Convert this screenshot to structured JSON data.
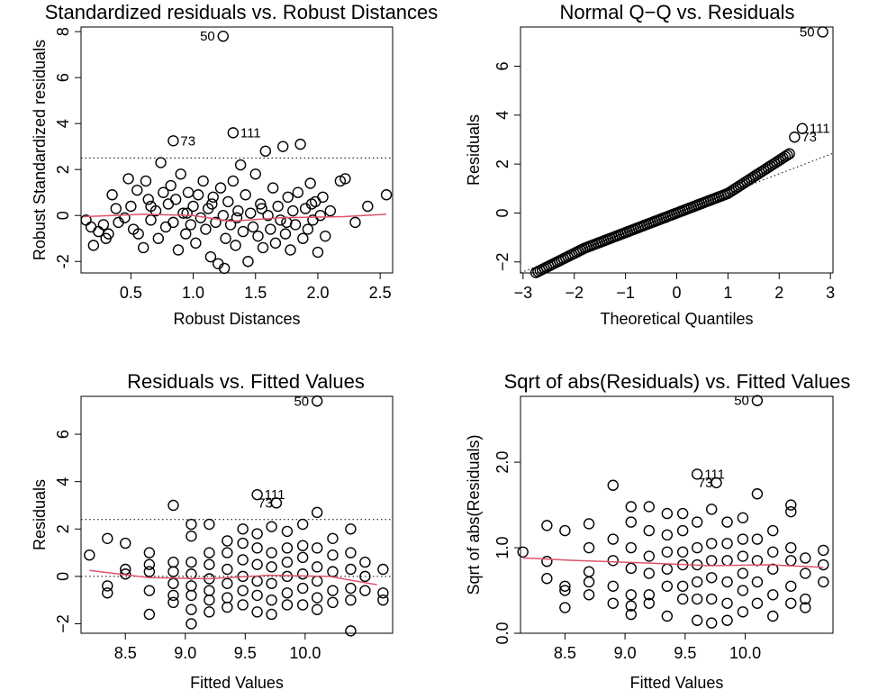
{
  "colors": {
    "points": "#000000",
    "smooth": "#DF536B",
    "reference": "#000000"
  },
  "chart_data": [
    {
      "type": "scatter",
      "title": "Standardized residuals vs. Robust Distances",
      "xlabel": "Robust Distances",
      "ylabel": "Robust Standardized residuals",
      "xlim": [
        0.1,
        2.6
      ],
      "ylim": [
        -2.5,
        8.2
      ],
      "xticks": [
        "0.5",
        "1.0",
        "1.5",
        "2.0",
        "2.5"
      ],
      "yticks": [
        "-2",
        "0",
        "2",
        "4",
        "6",
        "8"
      ],
      "hlines": [
        2.5,
        -2.5
      ],
      "smooth": [
        [
          0.12,
          -0.05
        ],
        [
          0.6,
          0.05
        ],
        [
          1.0,
          0.0
        ],
        [
          1.3,
          -0.25
        ],
        [
          1.7,
          -0.1
        ],
        [
          2.2,
          -0.05
        ],
        [
          2.55,
          0.05
        ]
      ],
      "labeled_points": [
        {
          "label": "50",
          "x": 1.24,
          "y": 7.8
        },
        {
          "label": "73",
          "x": 0.84,
          "y": 3.25
        },
        {
          "label": "111",
          "x": 1.32,
          "y": 3.6
        }
      ],
      "points": [
        [
          0.14,
          -0.2
        ],
        [
          0.18,
          -0.5
        ],
        [
          0.2,
          -1.3
        ],
        [
          0.24,
          -0.7
        ],
        [
          0.28,
          -0.4
        ],
        [
          0.3,
          -1.0
        ],
        [
          0.32,
          -0.8
        ],
        [
          0.35,
          0.9
        ],
        [
          0.38,
          0.3
        ],
        [
          0.4,
          -0.3
        ],
        [
          0.45,
          -0.1
        ],
        [
          0.48,
          1.6
        ],
        [
          0.5,
          0.4
        ],
        [
          0.52,
          -0.6
        ],
        [
          0.55,
          1.1
        ],
        [
          0.56,
          -0.8
        ],
        [
          0.6,
          -1.4
        ],
        [
          0.62,
          1.5
        ],
        [
          0.64,
          0.7
        ],
        [
          0.66,
          -0.2
        ],
        [
          0.7,
          0.2
        ],
        [
          0.72,
          -1.0
        ],
        [
          0.74,
          2.3
        ],
        [
          0.76,
          1.0
        ],
        [
          0.78,
          -0.5
        ],
        [
          0.8,
          0.5
        ],
        [
          0.82,
          1.3
        ],
        [
          0.84,
          -0.3
        ],
        [
          0.86,
          0.7
        ],
        [
          0.88,
          -1.5
        ],
        [
          0.9,
          1.8
        ],
        [
          0.92,
          0.1
        ],
        [
          0.94,
          -0.8
        ],
        [
          0.96,
          1.0
        ],
        [
          0.98,
          -0.4
        ],
        [
          1.0,
          0.4
        ],
        [
          1.02,
          -1.2
        ],
        [
          1.04,
          0.9
        ],
        [
          1.06,
          -0.1
        ],
        [
          1.08,
          1.5
        ],
        [
          1.1,
          -0.6
        ],
        [
          1.12,
          0.3
        ],
        [
          1.14,
          -1.8
        ],
        [
          1.16,
          0.8
        ],
        [
          1.18,
          -0.3
        ],
        [
          1.2,
          -2.1
        ],
        [
          1.22,
          1.2
        ],
        [
          1.24,
          0.0
        ],
        [
          1.26,
          -1.0
        ],
        [
          1.28,
          0.6
        ],
        [
          1.3,
          -0.4
        ],
        [
          1.32,
          1.5
        ],
        [
          1.34,
          -1.3
        ],
        [
          1.36,
          0.2
        ],
        [
          1.38,
          2.2
        ],
        [
          1.4,
          -0.7
        ],
        [
          1.42,
          0.9
        ],
        [
          1.44,
          -2.0
        ],
        [
          1.46,
          0.1
        ],
        [
          1.48,
          -0.5
        ],
        [
          1.5,
          1.8
        ],
        [
          1.52,
          -0.9
        ],
        [
          1.54,
          0.5
        ],
        [
          1.56,
          -1.4
        ],
        [
          1.58,
          2.8
        ],
        [
          1.6,
          0.0
        ],
        [
          1.62,
          -0.6
        ],
        [
          1.64,
          1.2
        ],
        [
          1.66,
          -1.2
        ],
        [
          1.68,
          0.4
        ],
        [
          1.7,
          -0.2
        ],
        [
          1.72,
          3.0
        ],
        [
          1.74,
          -0.8
        ],
        [
          1.76,
          0.8
        ],
        [
          1.78,
          -1.5
        ],
        [
          1.8,
          0.2
        ],
        [
          1.82,
          -0.4
        ],
        [
          1.84,
          1.0
        ],
        [
          1.86,
          3.1
        ],
        [
          1.88,
          -1.0
        ],
        [
          1.9,
          0.3
        ],
        [
          1.92,
          -0.6
        ],
        [
          1.94,
          1.4
        ],
        [
          1.96,
          -0.2
        ],
        [
          1.98,
          0.6
        ],
        [
          2.0,
          -1.6
        ],
        [
          2.02,
          0.0
        ],
        [
          2.04,
          0.8
        ],
        [
          2.06,
          -0.9
        ],
        [
          2.1,
          0.2
        ],
        [
          2.18,
          1.5
        ],
        [
          2.22,
          1.6
        ],
        [
          2.3,
          -0.3
        ],
        [
          2.4,
          0.4
        ],
        [
          2.55,
          0.9
        ],
        [
          1.25,
          -2.3
        ],
        [
          0.66,
          0.4
        ],
        [
          0.95,
          0.1
        ],
        [
          1.15,
          0.5
        ],
        [
          1.35,
          -0.1
        ],
        [
          1.55,
          0.3
        ],
        [
          1.75,
          -0.3
        ],
        [
          1.95,
          0.5
        ]
      ]
    },
    {
      "type": "scatter",
      "title": "Normal Q−Q vs. Residuals",
      "xlabel": "Theoretical Quantiles",
      "ylabel": "Residuals",
      "xlim": [
        -3.05,
        3.05
      ],
      "ylim": [
        -2.45,
        7.6
      ],
      "xticks": [
        "−3",
        "−2",
        "−1",
        "0",
        "1",
        "2",
        "3"
      ],
      "yticks": [
        "−2",
        "0",
        "2",
        "4",
        "6"
      ],
      "reference_line": {
        "intercept": 0.0,
        "slope": 0.8
      },
      "labeled_points": [
        {
          "label": "50",
          "x": 2.85,
          "y": 7.4
        },
        {
          "label": "111",
          "x": 2.45,
          "y": 3.45
        },
        {
          "label": "73",
          "x": 2.3,
          "y": 3.1
        }
      ],
      "qq_range": [
        -2.75,
        2.2
      ],
      "qq_count": 120
    },
    {
      "type": "scatter",
      "title": "Residuals vs. Fitted Values",
      "xlabel": "Fitted Values",
      "ylabel": "Residuals",
      "xlim": [
        8.13,
        10.73
      ],
      "ylim": [
        -2.4,
        7.6
      ],
      "xticks": [
        "8.5",
        "9.0",
        "9.5",
        "10.0"
      ],
      "yticks": [
        "−2",
        "0",
        "2",
        "4",
        "6"
      ],
      "hlines": [
        2.4,
        -2.4
      ],
      "smooth": [
        [
          8.2,
          0.25
        ],
        [
          8.7,
          -0.05
        ],
        [
          9.2,
          -0.1
        ],
        [
          9.7,
          0.05
        ],
        [
          10.2,
          0.0
        ],
        [
          10.6,
          -0.35
        ]
      ],
      "labeled_points": [
        {
          "label": "50",
          "x": 10.1,
          "y": 7.4
        },
        {
          "label": "111",
          "x": 9.6,
          "y": 3.45
        },
        {
          "label": "73",
          "x": 9.76,
          "y": 3.1
        }
      ],
      "columns": [
        8.2,
        8.35,
        8.5,
        8.7,
        8.9,
        9.05,
        9.2,
        9.35,
        9.48,
        9.6,
        9.72,
        9.85,
        9.98,
        10.1,
        10.23,
        10.38,
        10.5,
        10.65
      ],
      "points": [
        [
          8.2,
          0.9
        ],
        [
          8.35,
          -0.4
        ],
        [
          8.35,
          -0.7
        ],
        [
          8.35,
          1.6
        ],
        [
          8.5,
          0.1
        ],
        [
          8.5,
          0.3
        ],
        [
          8.5,
          1.4
        ],
        [
          8.7,
          0.2
        ],
        [
          8.7,
          0.5
        ],
        [
          8.7,
          -0.6
        ],
        [
          8.7,
          -1.6
        ],
        [
          8.7,
          1.0
        ],
        [
          8.9,
          3.0
        ],
        [
          8.9,
          0.2
        ],
        [
          8.9,
          -0.3
        ],
        [
          8.9,
          -0.8
        ],
        [
          8.9,
          -1.1
        ],
        [
          8.9,
          0.6
        ],
        [
          9.05,
          2.2
        ],
        [
          9.05,
          1.7
        ],
        [
          9.05,
          0.6
        ],
        [
          9.05,
          0.1
        ],
        [
          9.05,
          -0.4
        ],
        [
          9.05,
          -0.8
        ],
        [
          9.05,
          -1.4
        ],
        [
          9.05,
          -2.0
        ],
        [
          9.2,
          2.2
        ],
        [
          9.2,
          1.0
        ],
        [
          9.2,
          0.5
        ],
        [
          9.2,
          -0.1
        ],
        [
          9.2,
          -0.6
        ],
        [
          9.2,
          -1.0
        ],
        [
          9.2,
          -1.5
        ],
        [
          9.35,
          1.5
        ],
        [
          9.35,
          1.0
        ],
        [
          9.35,
          0.3
        ],
        [
          9.35,
          -0.3
        ],
        [
          9.35,
          -0.9
        ],
        [
          9.35,
          -1.3
        ],
        [
          9.48,
          2.0
        ],
        [
          9.48,
          1.4
        ],
        [
          9.48,
          0.7
        ],
        [
          9.48,
          0.0
        ],
        [
          9.48,
          -0.6
        ],
        [
          9.48,
          -1.2
        ],
        [
          9.6,
          1.8
        ],
        [
          9.6,
          1.2
        ],
        [
          9.6,
          0.5
        ],
        [
          9.6,
          -0.2
        ],
        [
          9.6,
          -0.8
        ],
        [
          9.6,
          -1.5
        ],
        [
          9.72,
          2.1
        ],
        [
          9.72,
          1.0
        ],
        [
          9.72,
          0.4
        ],
        [
          9.72,
          -0.3
        ],
        [
          9.72,
          -1.0
        ],
        [
          9.72,
          -1.6
        ],
        [
          9.85,
          1.9
        ],
        [
          9.85,
          1.2
        ],
        [
          9.85,
          0.6
        ],
        [
          9.85,
          0.0
        ],
        [
          9.85,
          -0.7
        ],
        [
          9.85,
          -1.2
        ],
        [
          9.98,
          2.2
        ],
        [
          9.98,
          1.3
        ],
        [
          9.98,
          0.8
        ],
        [
          9.98,
          0.1
        ],
        [
          9.98,
          -0.5
        ],
        [
          9.98,
          -1.2
        ],
        [
          10.1,
          2.7
        ],
        [
          10.1,
          1.2
        ],
        [
          10.1,
          0.4
        ],
        [
          10.1,
          -0.2
        ],
        [
          10.1,
          -0.9
        ],
        [
          10.1,
          -1.4
        ],
        [
          10.23,
          1.6
        ],
        [
          10.23,
          0.9
        ],
        [
          10.23,
          0.2
        ],
        [
          10.23,
          -0.6
        ],
        [
          10.23,
          -1.1
        ],
        [
          10.38,
          2.0
        ],
        [
          10.38,
          1.0
        ],
        [
          10.38,
          0.3
        ],
        [
          10.38,
          -0.5
        ],
        [
          10.38,
          -1.0
        ],
        [
          10.38,
          -2.3
        ],
        [
          10.5,
          0.6
        ],
        [
          10.5,
          0.0
        ],
        [
          10.5,
          -0.6
        ],
        [
          10.65,
          0.3
        ],
        [
          10.65,
          -0.7
        ],
        [
          10.65,
          -1.0
        ]
      ]
    },
    {
      "type": "scatter",
      "title": "Sqrt of abs(Residuals) vs. Fitted Values",
      "xlabel": "Fitted Values",
      "ylabel": "Sqrt of abs(Residuals)",
      "xlim": [
        8.13,
        10.73
      ],
      "ylim": [
        0.0,
        2.77
      ],
      "xticks": [
        "8.5",
        "9.0",
        "9.5",
        "10.0"
      ],
      "yticks": [
        "0.0",
        "1.0",
        "2.0"
      ],
      "smooth": [
        [
          8.15,
          0.88
        ],
        [
          8.6,
          0.85
        ],
        [
          9.2,
          0.82
        ],
        [
          9.7,
          0.79
        ],
        [
          10.2,
          0.8
        ],
        [
          10.65,
          0.77
        ]
      ],
      "labeled_points": [
        {
          "label": "50",
          "x": 10.1,
          "y": 2.72
        },
        {
          "label": "111",
          "x": 9.6,
          "y": 1.86
        },
        {
          "label": "73",
          "x": 9.76,
          "y": 1.76
        }
      ],
      "points": [
        [
          8.15,
          0.95
        ],
        [
          8.35,
          1.26
        ],
        [
          8.35,
          0.84
        ],
        [
          8.35,
          0.64
        ],
        [
          8.5,
          1.2
        ],
        [
          8.5,
          0.55
        ],
        [
          8.5,
          0.5
        ],
        [
          8.5,
          0.3
        ],
        [
          8.7,
          1.28
        ],
        [
          8.7,
          1.0
        ],
        [
          8.7,
          0.72
        ],
        [
          8.7,
          0.6
        ],
        [
          8.7,
          0.45
        ],
        [
          8.9,
          1.73
        ],
        [
          8.9,
          1.1
        ],
        [
          8.9,
          0.85
        ],
        [
          8.9,
          0.55
        ],
        [
          8.9,
          0.35
        ],
        [
          9.05,
          1.48
        ],
        [
          9.05,
          1.3
        ],
        [
          9.05,
          1.0
        ],
        [
          9.05,
          0.76
        ],
        [
          9.05,
          0.45
        ],
        [
          9.05,
          0.32
        ],
        [
          9.05,
          0.22
        ],
        [
          9.2,
          1.48
        ],
        [
          9.2,
          1.2
        ],
        [
          9.2,
          0.9
        ],
        [
          9.2,
          0.7
        ],
        [
          9.2,
          0.45
        ],
        [
          9.2,
          0.35
        ],
        [
          9.35,
          1.4
        ],
        [
          9.35,
          1.15
        ],
        [
          9.35,
          0.95
        ],
        [
          9.35,
          0.75
        ],
        [
          9.35,
          0.55
        ],
        [
          9.35,
          0.2
        ],
        [
          9.48,
          1.4
        ],
        [
          9.48,
          1.2
        ],
        [
          9.48,
          0.95
        ],
        [
          9.48,
          0.8
        ],
        [
          9.48,
          0.55
        ],
        [
          9.48,
          0.4
        ],
        [
          9.6,
          1.3
        ],
        [
          9.6,
          1.0
        ],
        [
          9.6,
          0.8
        ],
        [
          9.6,
          0.6
        ],
        [
          9.6,
          0.4
        ],
        [
          9.6,
          0.15
        ],
        [
          9.72,
          1.45
        ],
        [
          9.72,
          1.05
        ],
        [
          9.72,
          0.85
        ],
        [
          9.72,
          0.65
        ],
        [
          9.72,
          0.4
        ],
        [
          9.72,
          0.12
        ],
        [
          9.85,
          1.3
        ],
        [
          9.85,
          1.05
        ],
        [
          9.85,
          0.85
        ],
        [
          9.85,
          0.6
        ],
        [
          9.85,
          0.35
        ],
        [
          9.85,
          0.15
        ],
        [
          9.98,
          1.35
        ],
        [
          9.98,
          1.1
        ],
        [
          9.98,
          0.9
        ],
        [
          9.98,
          0.7
        ],
        [
          9.98,
          0.5
        ],
        [
          9.98,
          0.25
        ],
        [
          10.1,
          1.63
        ],
        [
          10.1,
          1.1
        ],
        [
          10.1,
          0.85
        ],
        [
          10.1,
          0.6
        ],
        [
          10.1,
          0.35
        ],
        [
          10.23,
          1.2
        ],
        [
          10.23,
          0.95
        ],
        [
          10.23,
          0.75
        ],
        [
          10.23,
          0.45
        ],
        [
          10.23,
          0.2
        ],
        [
          10.38,
          1.5
        ],
        [
          10.38,
          1.42
        ],
        [
          10.38,
          1.0
        ],
        [
          10.38,
          0.85
        ],
        [
          10.38,
          0.55
        ],
        [
          10.38,
          0.35
        ],
        [
          10.5,
          0.88
        ],
        [
          10.5,
          0.7
        ],
        [
          10.5,
          0.4
        ],
        [
          10.5,
          0.3
        ],
        [
          10.65,
          0.97
        ],
        [
          10.65,
          0.8
        ],
        [
          10.65,
          0.6
        ]
      ]
    }
  ]
}
